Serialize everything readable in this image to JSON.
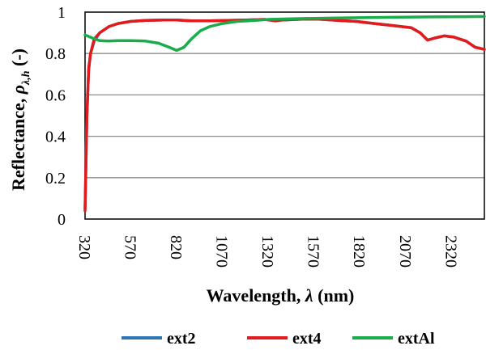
{
  "chart_data": {
    "type": "line",
    "xlabel_main": "Wavelength, ",
    "xlabel_symbol": "λ",
    "xlabel_unit": " (nm)",
    "ylabel_main": "Reflectance, ",
    "ylabel_symbol": "ρ",
    "ylabel_sub": "λ,h",
    "ylabel_unit": " (-)",
    "xlim": [
      320,
      2500
    ],
    "ylim": [
      0,
      1
    ],
    "x_ticks": [
      320,
      570,
      820,
      1070,
      1320,
      1570,
      1820,
      2070,
      2320
    ],
    "y_ticks": [
      0,
      0.2,
      0.4,
      0.6,
      0.8,
      1
    ],
    "y_tick_labels": [
      "0",
      "0.2",
      "0.4",
      "0.6",
      "0.8",
      "1"
    ],
    "grid": "horizontal",
    "legend_position": "bottom",
    "series": [
      {
        "name": "ext2",
        "color": "#2e75b6",
        "points": [
          [
            320,
            0.05
          ],
          [
            330,
            0.5
          ],
          [
            340,
            0.72
          ],
          [
            350,
            0.8
          ],
          [
            370,
            0.86
          ],
          [
            400,
            0.9
          ],
          [
            450,
            0.93
          ],
          [
            500,
            0.945
          ],
          [
            570,
            0.955
          ],
          [
            650,
            0.96
          ],
          [
            750,
            0.962
          ],
          [
            820,
            0.962
          ],
          [
            900,
            0.958
          ],
          [
            1000,
            0.958
          ],
          [
            1100,
            0.96
          ],
          [
            1200,
            0.962
          ],
          [
            1300,
            0.965
          ],
          [
            1360,
            0.958
          ],
          [
            1400,
            0.962
          ],
          [
            1500,
            0.966
          ],
          [
            1600,
            0.966
          ],
          [
            1700,
            0.96
          ],
          [
            1800,
            0.955
          ],
          [
            1900,
            0.945
          ],
          [
            2000,
            0.935
          ],
          [
            2100,
            0.925
          ],
          [
            2150,
            0.9
          ],
          [
            2190,
            0.865
          ],
          [
            2230,
            0.875
          ],
          [
            2280,
            0.885
          ],
          [
            2330,
            0.88
          ],
          [
            2400,
            0.86
          ],
          [
            2450,
            0.83
          ],
          [
            2500,
            0.82
          ]
        ]
      },
      {
        "name": "ext4",
        "color": "#e31a1c",
        "points": [
          [
            320,
            0.04
          ],
          [
            330,
            0.5
          ],
          [
            340,
            0.73
          ],
          [
            350,
            0.8
          ],
          [
            370,
            0.87
          ],
          [
            400,
            0.9
          ],
          [
            450,
            0.93
          ],
          [
            500,
            0.945
          ],
          [
            570,
            0.955
          ],
          [
            650,
            0.96
          ],
          [
            750,
            0.962
          ],
          [
            820,
            0.962
          ],
          [
            900,
            0.958
          ],
          [
            1000,
            0.958
          ],
          [
            1100,
            0.96
          ],
          [
            1200,
            0.962
          ],
          [
            1300,
            0.965
          ],
          [
            1360,
            0.958
          ],
          [
            1400,
            0.962
          ],
          [
            1500,
            0.966
          ],
          [
            1600,
            0.966
          ],
          [
            1700,
            0.96
          ],
          [
            1800,
            0.955
          ],
          [
            1900,
            0.945
          ],
          [
            2000,
            0.935
          ],
          [
            2100,
            0.925
          ],
          [
            2150,
            0.9
          ],
          [
            2190,
            0.865
          ],
          [
            2230,
            0.875
          ],
          [
            2280,
            0.885
          ],
          [
            2330,
            0.88
          ],
          [
            2400,
            0.86
          ],
          [
            2450,
            0.83
          ],
          [
            2500,
            0.82
          ]
        ]
      },
      {
        "name": "extAl",
        "color": "#1aab4b",
        "points": [
          [
            320,
            0.89
          ],
          [
            360,
            0.875
          ],
          [
            400,
            0.862
          ],
          [
            450,
            0.86
          ],
          [
            500,
            0.862
          ],
          [
            570,
            0.862
          ],
          [
            650,
            0.86
          ],
          [
            720,
            0.85
          ],
          [
            780,
            0.83
          ],
          [
            820,
            0.815
          ],
          [
            860,
            0.83
          ],
          [
            900,
            0.87
          ],
          [
            950,
            0.91
          ],
          [
            1000,
            0.93
          ],
          [
            1070,
            0.945
          ],
          [
            1150,
            0.955
          ],
          [
            1250,
            0.96
          ],
          [
            1320,
            0.965
          ],
          [
            1450,
            0.968
          ],
          [
            1570,
            0.97
          ],
          [
            1700,
            0.972
          ],
          [
            1820,
            0.973
          ],
          [
            2000,
            0.975
          ],
          [
            2200,
            0.977
          ],
          [
            2400,
            0.978
          ],
          [
            2500,
            0.979
          ]
        ]
      }
    ]
  }
}
